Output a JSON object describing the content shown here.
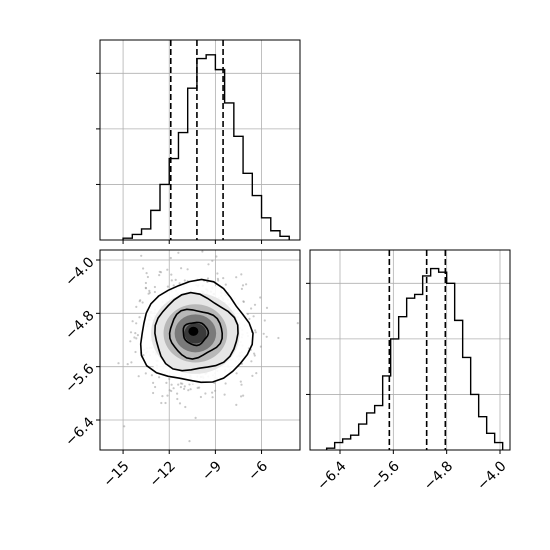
{
  "chart_data": [
    {
      "panel": "hist-x",
      "type": "histogram",
      "x_range": [
        -16.5,
        -3.5
      ],
      "y_range": [
        0,
        1.08
      ],
      "grid": true,
      "bin_edges": [
        -15.0,
        -14.4,
        -13.8,
        -13.2,
        -12.6,
        -12.0,
        -11.4,
        -10.8,
        -10.2,
        -9.6,
        -9.0,
        -8.4,
        -7.8,
        -7.2,
        -6.6,
        -6.0,
        -5.4,
        -4.8,
        -4.2
      ],
      "values": [
        0.01,
        0.03,
        0.06,
        0.16,
        0.3,
        0.44,
        0.58,
        0.82,
        0.98,
        1.0,
        0.92,
        0.74,
        0.56,
        0.36,
        0.24,
        0.12,
        0.05,
        0.02
      ],
      "quantiles": [
        -11.9,
        -10.2,
        -8.5
      ],
      "xticks": [],
      "yticks": [
        0.3,
        0.6,
        0.9
      ]
    },
    {
      "panel": "density-2d",
      "type": "scatter-density",
      "x_range": [
        -16.5,
        -3.5
      ],
      "y_range": [
        -6.85,
        -3.85
      ],
      "grid": true,
      "center": [
        -10.3,
        -5.1
      ],
      "spread": [
        1.8,
        0.38
      ],
      "contours": [
        "outer",
        "middle",
        "inner",
        "core"
      ],
      "xticks": [
        "−15",
        "−12",
        "−9",
        "−6"
      ],
      "yticks": [
        "−4.0",
        "−4.8",
        "−5.6",
        "−6.4"
      ]
    },
    {
      "panel": "hist-y",
      "type": "histogram",
      "x_range": [
        -6.85,
        -3.85
      ],
      "y_range": [
        0,
        1.08
      ],
      "grid": true,
      "bin_edges": [
        -6.6,
        -6.48,
        -6.36,
        -6.24,
        -6.12,
        -6.0,
        -5.88,
        -5.76,
        -5.64,
        -5.52,
        -5.4,
        -5.28,
        -5.16,
        -5.04,
        -4.92,
        -4.8,
        -4.68,
        -4.56,
        -4.44,
        -4.32,
        -4.2,
        -4.08,
        -3.96
      ],
      "values": [
        0.01,
        0.04,
        0.06,
        0.08,
        0.14,
        0.2,
        0.24,
        0.4,
        0.6,
        0.72,
        0.82,
        0.84,
        0.94,
        0.98,
        0.96,
        0.9,
        0.7,
        0.5,
        0.3,
        0.18,
        0.09,
        0.04
      ],
      "quantiles": [
        -5.66,
        -5.1,
        -4.82
      ],
      "xticks": [
        "−6.4",
        "−5.6",
        "−4.8",
        "−4.0"
      ],
      "yticks": [
        0.3,
        0.6,
        0.9
      ]
    }
  ]
}
